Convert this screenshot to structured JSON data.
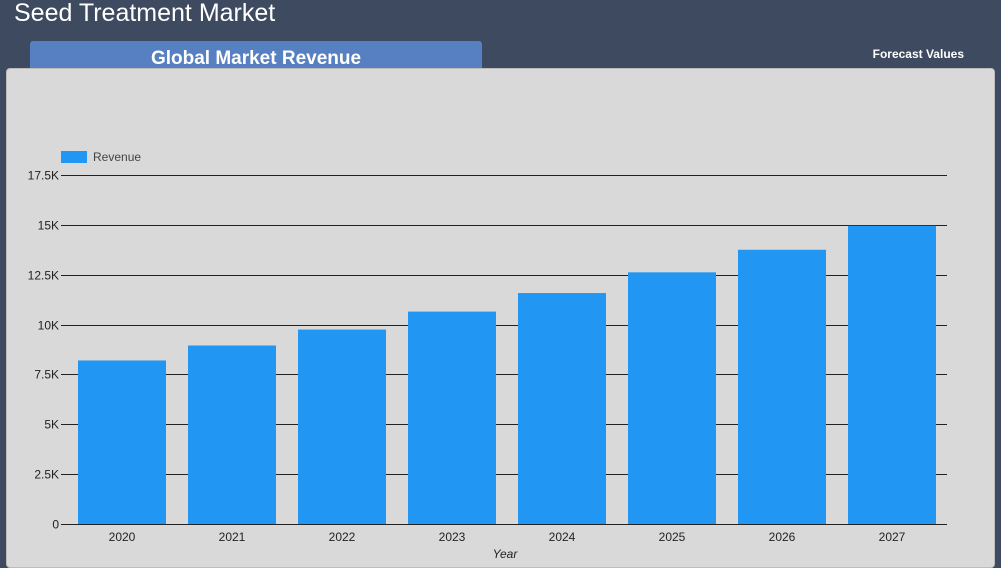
{
  "header": {
    "title": "Seed Treatment Market",
    "forecast_label": "Forecast Values"
  },
  "section": {
    "title": "Global Market Revenue"
  },
  "chart_data": {
    "type": "bar",
    "categories": [
      "2020",
      "2021",
      "2022",
      "2023",
      "2024",
      "2025",
      "2026",
      "2027"
    ],
    "series": [
      {
        "name": "Revenue",
        "values": [
          8200,
          8950,
          9750,
          10650,
          11580,
          12620,
          13750,
          14950
        ]
      }
    ],
    "xlabel": "Year",
    "ylabel": "",
    "ylim": [
      0,
      17500
    ],
    "yticks": [
      0,
      2500,
      5000,
      7500,
      10000,
      12500,
      15000,
      17500
    ],
    "ytick_labels": [
      "0",
      "2.5K",
      "5K",
      "7.5K",
      "10K",
      "12.5K",
      "15K",
      "17.5K"
    ],
    "legend_position": "top-left",
    "grid": true,
    "colors": {
      "bar": "#2196f3",
      "grid": "#222222"
    }
  }
}
